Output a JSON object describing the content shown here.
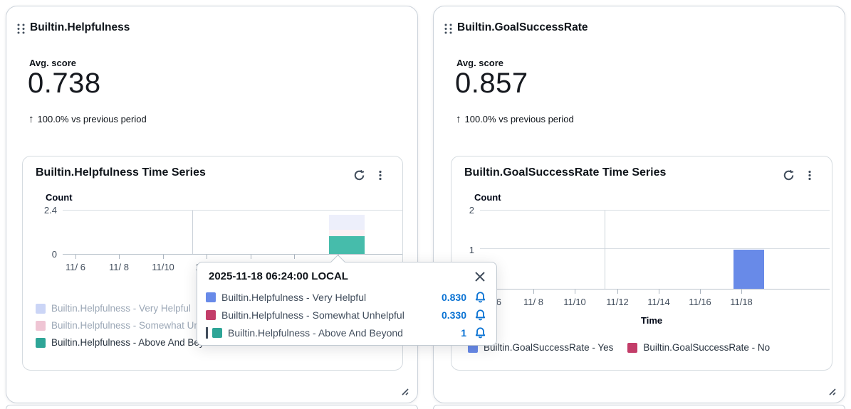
{
  "panels": [
    {
      "title": "Builtin.Helpfulness",
      "metric_label": "Avg. score",
      "metric_value": "0.738",
      "trend_icon": "↑",
      "trend_text": "100.0% vs previous period",
      "chart": {
        "title": "Builtin.Helpfulness Time Series",
        "y_axis_label": "Count",
        "x_axis_label": "Time",
        "y_ticks": [
          "2.4",
          "0"
        ],
        "x_ticks": [
          "11/ 6",
          "11/ 8",
          "11/10",
          "11/12",
          "11/14",
          "11/16",
          "11/18"
        ],
        "legend": [
          {
            "label": "Builtin.Helpfulness - Very Helpful",
            "color": "#CBD5F6",
            "dimmed": true
          },
          {
            "label": "Builtin.Helpfulness - Somewhat Unhelpful",
            "color": "#EFC5D4",
            "dimmed": true
          },
          {
            "label": "Builtin.Helpfulness - Above And Beyond",
            "color": "#2EA597",
            "dimmed": false
          }
        ]
      }
    },
    {
      "title": "Builtin.GoalSuccessRate",
      "metric_label": "Avg. score",
      "metric_value": "0.857",
      "trend_icon": "↑",
      "trend_text": "100.0% vs previous period",
      "chart": {
        "title": "Builtin.GoalSuccessRate Time Series",
        "y_axis_label": "Count",
        "x_axis_label": "Time",
        "y_ticks": [
          "2",
          "1"
        ],
        "x_ticks": [
          "11/ 6",
          "11/ 8",
          "11/10",
          "11/12",
          "11/14",
          "11/16",
          "11/18"
        ],
        "legend": [
          {
            "label": "Builtin.GoalSuccessRate - Yes",
            "color": "#688AE8",
            "dimmed": false
          },
          {
            "label": "Builtin.GoalSuccessRate - No",
            "color": "#C33D69",
            "dimmed": false
          }
        ]
      }
    }
  ],
  "tooltip": {
    "timestamp": "2025-11-18 06:24:00 LOCAL",
    "rows": [
      {
        "label": "Builtin.Helpfulness - Very Helpful",
        "value": "0.830",
        "color": "#688AE8",
        "highlighted": false
      },
      {
        "label": "Builtin.Helpfulness - Somewhat Unhelpful",
        "value": "0.330",
        "color": "#C33D69",
        "highlighted": false
      },
      {
        "label": "Builtin.Helpfulness - Above And Beyond",
        "value": "1",
        "color": "#2EA597",
        "highlighted": true
      }
    ]
  },
  "chart_data": [
    {
      "type": "bar",
      "stacked": true,
      "title": "Builtin.Helpfulness Time Series",
      "xlabel": "Time",
      "ylabel": "Count",
      "ylim": [
        0,
        2.4
      ],
      "x_ticks": [
        "11/6",
        "11/8",
        "11/10",
        "11/12",
        "11/14",
        "11/16",
        "11/18"
      ],
      "grid": true,
      "legend_position": "bottom",
      "series": [
        {
          "name": "Builtin.Helpfulness - Very Helpful",
          "color": "#688AE8",
          "fill": "#EDEFFB",
          "dimmed": true,
          "x": "2025-11-18 06:24:00",
          "value": 0.83
        },
        {
          "name": "Builtin.Helpfulness - Somewhat Unhelpful",
          "color": "#C33D69",
          "fill": "#FBF0F4",
          "dimmed": true,
          "x": "2025-11-18 06:24:00",
          "value": 0.33
        },
        {
          "name": "Builtin.Helpfulness - Above And Beyond",
          "color": "#2EA597",
          "fill": "#46BCAB",
          "dimmed": false,
          "x": "2025-11-18 06:24:00",
          "value": 1
        }
      ]
    },
    {
      "type": "bar",
      "stacked": true,
      "title": "Builtin.GoalSuccessRate Time Series",
      "xlabel": "Time",
      "ylabel": "Count",
      "ylim": [
        0,
        2
      ],
      "x_ticks": [
        "11/6",
        "11/8",
        "11/10",
        "11/12",
        "11/14",
        "11/16",
        "11/18"
      ],
      "grid": true,
      "legend_position": "bottom",
      "series": [
        {
          "name": "Builtin.GoalSuccessRate - Yes",
          "color": "#688AE8",
          "fill": "#688AE8",
          "dimmed": false,
          "x": "2025-11-18",
          "value": 1
        },
        {
          "name": "Builtin.GoalSuccessRate - No",
          "color": "#C33D69",
          "fill": "#C33D69",
          "dimmed": false,
          "x": "2025-11-18",
          "value": 0
        }
      ]
    }
  ],
  "colors": {
    "accent_blue": "#688AE8",
    "accent_crimson": "#C33D69",
    "accent_teal": "#2EA597",
    "link_blue": "#0972D3"
  }
}
